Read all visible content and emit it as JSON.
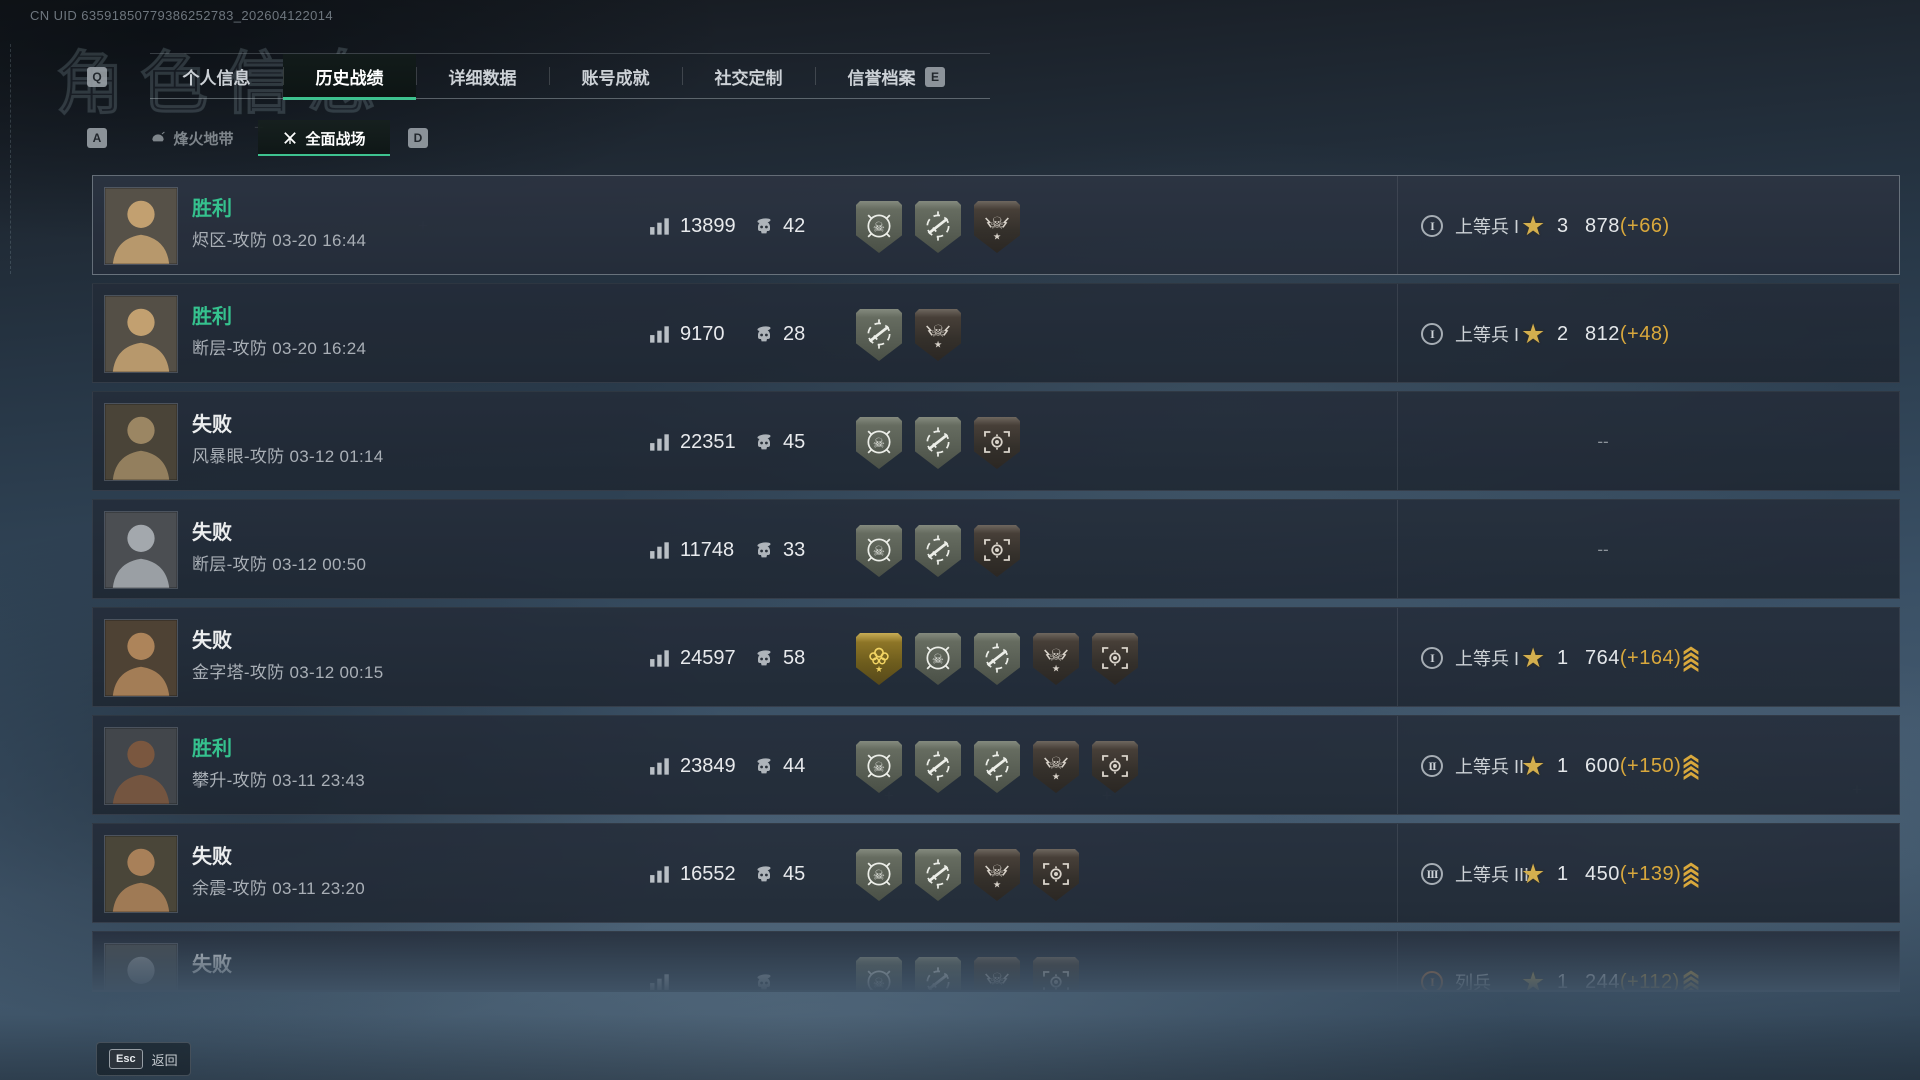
{
  "header": {
    "uid": "CN UID 63591850779386252783_202604122014",
    "ghost_title": "角色信息",
    "key_left": "Q",
    "key_right": "E",
    "tabs": [
      {
        "key": "personal-info",
        "label": "个人信息",
        "active": false
      },
      {
        "key": "match-history",
        "label": "历史战绩",
        "active": true
      },
      {
        "key": "detailed-stats",
        "label": "详细数据",
        "active": false
      },
      {
        "key": "achievements",
        "label": "账号成就",
        "active": false
      },
      {
        "key": "social-custom",
        "label": "社交定制",
        "active": false
      },
      {
        "key": "reputation",
        "label": "信誉档案",
        "active": false
      }
    ]
  },
  "subheader": {
    "key_left": "A",
    "key_right": "D",
    "subtabs": [
      {
        "key": "fire-zone",
        "label": "烽火地带",
        "icon": "g-helmet",
        "active": false
      },
      {
        "key": "full-battlefield",
        "label": "全面战场",
        "icon": "g-rifles",
        "active": true
      }
    ]
  },
  "colors": {
    "accent_green": "#3ec28f",
    "gold": "#d9a83c",
    "win_text": "#35c28e"
  },
  "deco": {
    "cross_glyph": "+"
  },
  "match_list": {
    "rows": [
      {
        "selected": true,
        "result": "胜利",
        "win": true,
        "map": "烬区-攻防",
        "time": "03-20 16:44",
        "score": "13899",
        "kills": "42",
        "badges": [
          "skull-target",
          "rifle-target",
          "elite-skull"
        ],
        "rank_numeral": "I",
        "rank_label": "上等兵 I",
        "stars": "3",
        "points": "878",
        "gain": "(+66)",
        "promoted": false,
        "avatar": {
          "bg": "#565148",
          "fg": "#c2a070"
        }
      },
      {
        "result": "胜利",
        "win": true,
        "map": "断层-攻防",
        "time": "03-20 16:24",
        "score": "9170",
        "kills": "28",
        "badges": [
          "rifle-target",
          "elite-skull"
        ],
        "rank_numeral": "I",
        "rank_label": "上等兵 I",
        "stars": "2",
        "points": "812",
        "gain": "(+48)",
        "promoted": false,
        "avatar": {
          "bg": "#544f46",
          "fg": "#c2a070"
        }
      },
      {
        "result": "失败",
        "win": false,
        "map": "风暴眼-攻防",
        "time": "03-12 01:14",
        "score": "22351",
        "kills": "45",
        "badges": [
          "skull-target",
          "rifle-target",
          "eye-recon"
        ],
        "dash": "--",
        "avatar": {
          "bg": "#4a4438",
          "fg": "#9b8663"
        }
      },
      {
        "result": "失败",
        "win": false,
        "map": "断层-攻防",
        "time": "03-12 00:50",
        "score": "11748",
        "kills": "33",
        "badges": [
          "skull-target",
          "rifle-target",
          "eye-recon"
        ],
        "dash": "--",
        "avatar": {
          "bg": "#4b4e52",
          "fg": "#a3a8ad"
        }
      },
      {
        "result": "失败",
        "win": false,
        "map": "金字塔-攻防",
        "time": "03-12 00:15",
        "score": "24597",
        "kills": "58",
        "badges": [
          "gold-laurel",
          "skull-target",
          "rifle-target",
          "elite-skull",
          "eye-recon"
        ],
        "rank_numeral": "I",
        "rank_label": "上等兵 I",
        "stars": "1",
        "points": "764",
        "gain": "(+164)",
        "promoted": true,
        "avatar": {
          "bg": "#4e4234",
          "fg": "#ad845a"
        }
      },
      {
        "result": "胜利",
        "win": true,
        "map": "攀升-攻防",
        "time": "03-11 23:43",
        "score": "23849",
        "kills": "44",
        "badges": [
          "skull-target",
          "rifle-target",
          "rifle-target",
          "elite-skull",
          "eye-recon"
        ],
        "rank_numeral": "II",
        "rank_label": "上等兵 II",
        "stars": "1",
        "points": "600",
        "gain": "(+150)",
        "promoted": true,
        "avatar": {
          "bg": "#42464b",
          "fg": "#7a573f"
        }
      },
      {
        "result": "失败",
        "win": false,
        "map": "余震-攻防",
        "time": "03-11 23:20",
        "score": "16552",
        "kills": "45",
        "badges": [
          "skull-target",
          "rifle-target",
          "elite-skull",
          "eye-recon"
        ],
        "rank_numeral": "III",
        "rank_label": "上等兵 III",
        "stars": "1",
        "points": "450",
        "gain": "(+139)",
        "promoted": true,
        "avatar": {
          "bg": "#4a4639",
          "fg": "#a88059"
        }
      },
      {
        "result": "失败",
        "win": false,
        "map": "",
        "time": "",
        "score": "",
        "kills": "",
        "badges": [
          "skull-target",
          "rifle-target",
          "elite-skull",
          "eye-recon"
        ],
        "rank_numeral": "I",
        "rank_label": "列兵",
        "rank_tone": "orange",
        "stars": "1",
        "points": "244",
        "gain": "(+112)",
        "promoted": true,
        "clipped": true,
        "avatar": {
          "bg": "#474c50",
          "fg": "#8d9399"
        }
      }
    ]
  },
  "footer": {
    "esc_key": "Esc",
    "back_label": "返回"
  }
}
